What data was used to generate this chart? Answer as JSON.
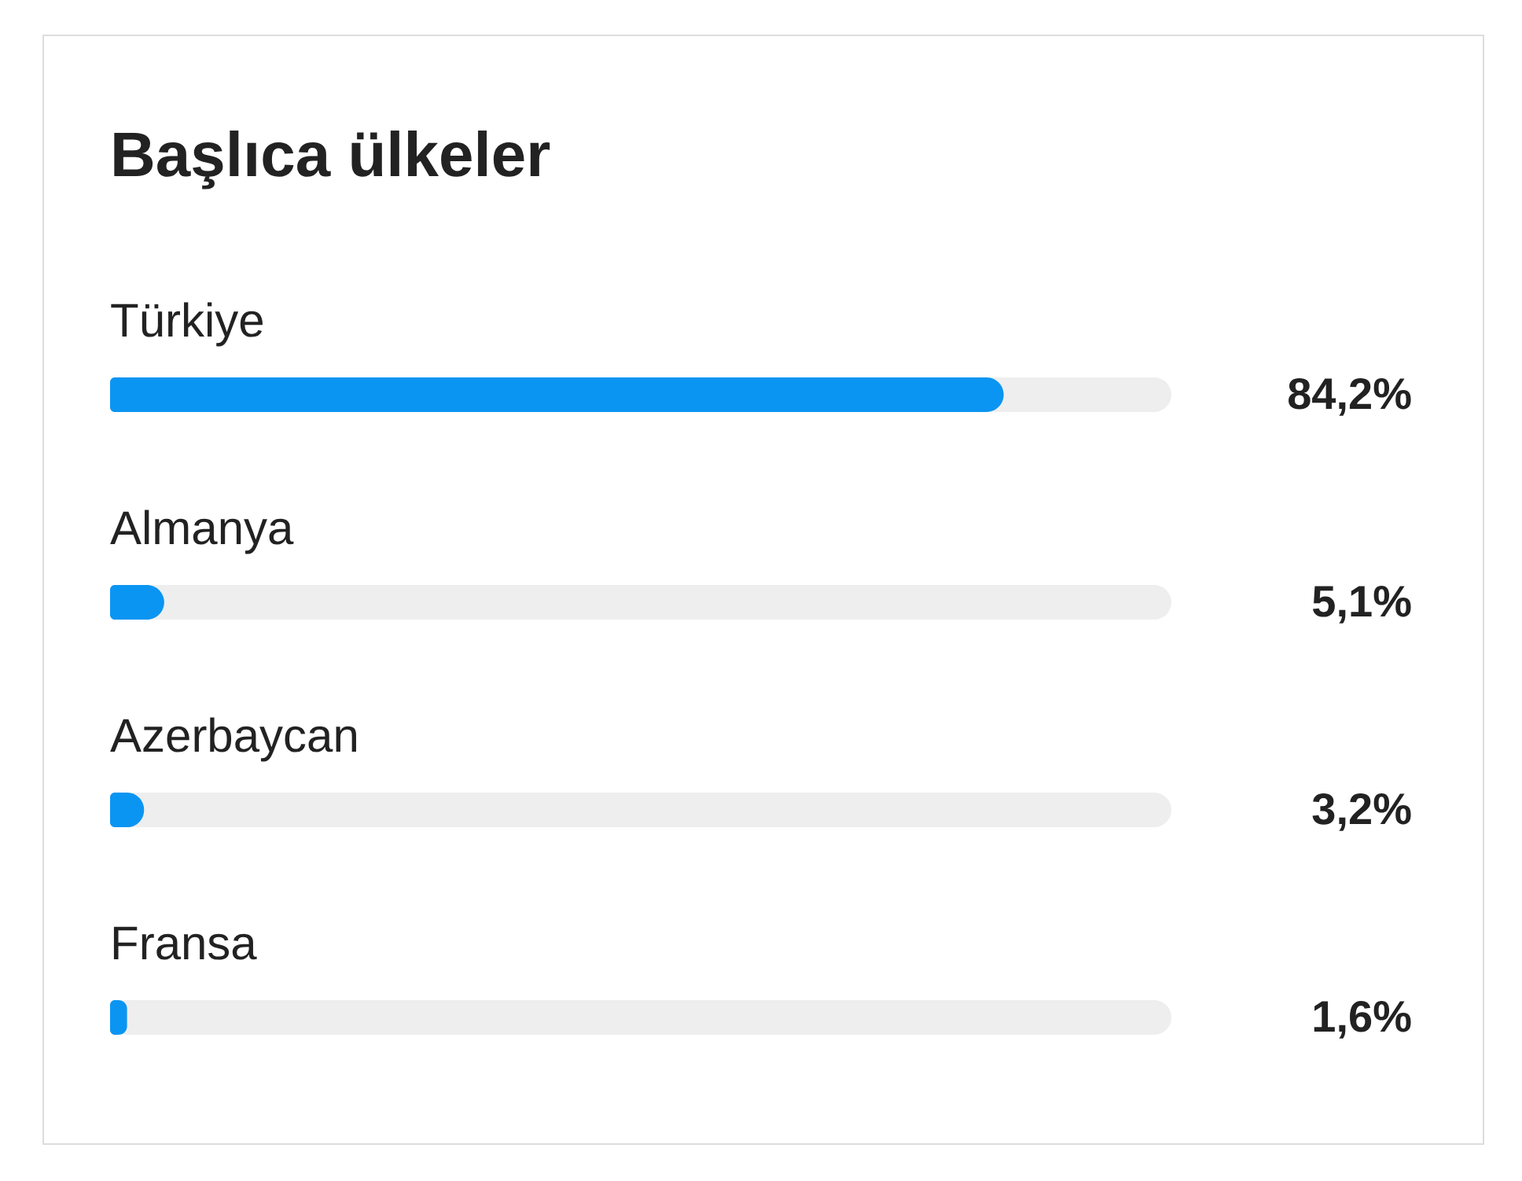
{
  "chart_data": {
    "type": "bar",
    "orientation": "horizontal",
    "title": "Başlıca ülkeler",
    "categories": [
      "Türkiye",
      "Almanya",
      "Azerbaycan",
      "Fransa"
    ],
    "values": [
      84.2,
      5.1,
      3.2,
      1.6
    ],
    "value_labels": [
      "84,2%",
      "5,1%",
      "3,2%",
      "1,6%"
    ],
    "color": "#0b95f2",
    "xlim": [
      0,
      100
    ],
    "tick_labels": "y"
  }
}
